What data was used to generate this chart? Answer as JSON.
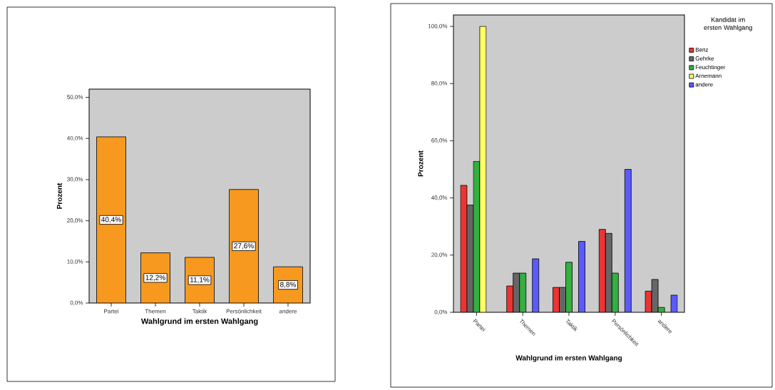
{
  "chart_data": [
    {
      "type": "bar",
      "xlabel": "Wahlgrund im ersten Wahlgang",
      "ylabel": "Prozent",
      "categories": [
        "Partei",
        "Themen",
        "Taktik",
        "Persönlichkeit",
        "andere"
      ],
      "values": [
        40.4,
        12.2,
        11.1,
        27.6,
        8.8
      ],
      "color": "#f7991f",
      "value_labels": [
        "40,4%",
        "12,2%",
        "11,1%",
        "27,6%",
        "8,8%"
      ],
      "ylim": [
        0,
        52
      ],
      "yticks": [
        {
          "value": 0,
          "label": "0,0%"
        },
        {
          "value": 10,
          "label": "10,0%"
        },
        {
          "value": 20,
          "label": "20,0%"
        },
        {
          "value": 30,
          "label": "30,0%"
        },
        {
          "value": 40,
          "label": "40,0%"
        },
        {
          "value": 50,
          "label": "50,0%"
        }
      ]
    },
    {
      "type": "bar",
      "xlabel": "Wahlgrund im ersten Wahlgang",
      "ylabel": "Prozent",
      "legend_title": "Kandidat im ersten Wahlgang",
      "legend": "top right",
      "categories": [
        "Partei",
        "Themen",
        "Taktik",
        "Persönlichkeit",
        "andere"
      ],
      "ylim": [
        0,
        104
      ],
      "yticks": [
        {
          "value": 0,
          "label": "0,0%"
        },
        {
          "value": 20,
          "label": "20,0%"
        },
        {
          "value": 40,
          "label": "40,0%"
        },
        {
          "value": 60,
          "label": "60,0%"
        },
        {
          "value": 80,
          "label": "80,0%"
        },
        {
          "value": 100,
          "label": "100,0%"
        }
      ],
      "series": [
        {
          "name": "Benz",
          "color": "#ee3333",
          "values": [
            44.4,
            9.2,
            8.7,
            29.0,
            7.4
          ]
        },
        {
          "name": "Gehrke",
          "color": "#666666",
          "values": [
            37.5,
            13.7,
            8.7,
            27.6,
            11.5
          ]
        },
        {
          "name": "Feuchtinger",
          "color": "#33b040",
          "values": [
            52.8,
            13.7,
            17.5,
            13.7,
            1.7
          ]
        },
        {
          "name": "Arnemann",
          "color": "#ffff66",
          "values": [
            100,
            null,
            null,
            null,
            null
          ]
        },
        {
          "name": "andere",
          "color": "#5a5aff",
          "values": [
            null,
            18.7,
            24.8,
            50.0,
            6.0
          ]
        }
      ]
    }
  ]
}
